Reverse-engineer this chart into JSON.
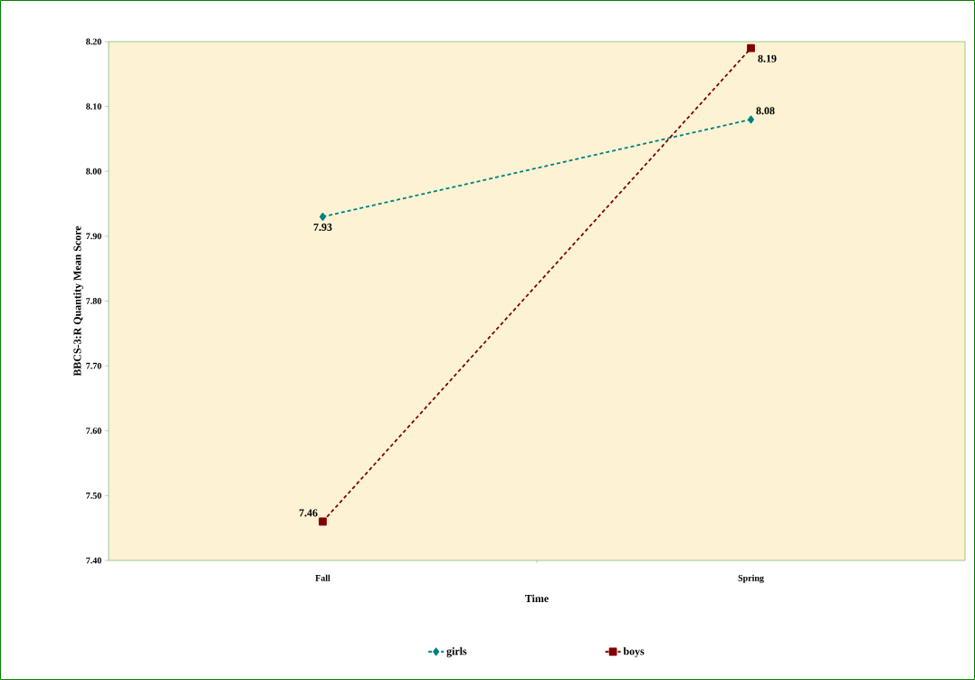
{
  "chart_data": {
    "type": "line",
    "xlabel": "Time",
    "ylabel": "BBCS-3:R Quantity Mean Score",
    "categories": [
      "Fall",
      "Spring"
    ],
    "series": [
      {
        "name": "girls",
        "color": "#008080",
        "values": [
          7.93,
          8.08
        ],
        "marker": "diamond",
        "line_style": "dashed"
      },
      {
        "name": "boys",
        "color": "#800000",
        "values": [
          7.46,
          8.19
        ],
        "marker": "square",
        "line_style": "dashed"
      }
    ],
    "ylim": [
      7.4,
      8.2
    ],
    "yticks": [
      {
        "value": 7.4,
        "label": "7.40"
      },
      {
        "value": 7.5,
        "label": "7.50"
      },
      {
        "value": 7.6,
        "label": "7.60"
      },
      {
        "value": 7.7,
        "label": "7.70"
      },
      {
        "value": 7.8,
        "label": "7.80"
      },
      {
        "value": 7.9,
        "label": "7.90"
      },
      {
        "value": 8.0,
        "label": "8.00"
      },
      {
        "value": 8.1,
        "label": "8.10"
      },
      {
        "value": 8.2,
        "label": "8.20"
      }
    ],
    "data_labels": true,
    "legend": "bottom",
    "grid": false
  }
}
